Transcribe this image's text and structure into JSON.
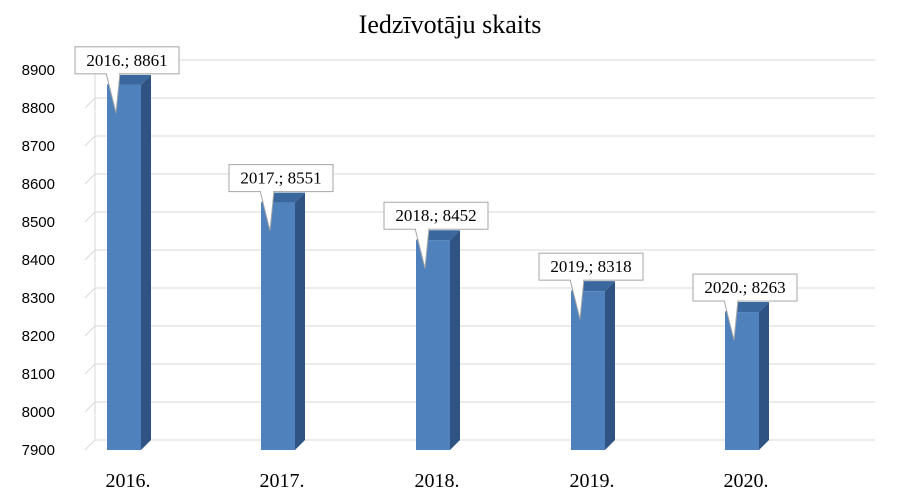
{
  "chart_data": {
    "type": "bar",
    "title": "Iedzīvotāju skaits",
    "categories": [
      "2016.",
      "2017.",
      "2018.",
      "2019.",
      "2020."
    ],
    "values": [
      8861,
      8551,
      8452,
      8318,
      8263
    ],
    "data_labels": [
      "2016.; 8861",
      "2017.; 8551",
      "2018.; 8452",
      "2019.; 8318",
      "2020.; 8263"
    ],
    "ylim": [
      7900,
      8900
    ],
    "yticks": [
      "7900",
      "8000",
      "8100",
      "8200",
      "8300",
      "8400",
      "8500",
      "8600",
      "8700",
      "8800",
      "8900"
    ],
    "xlabel": "",
    "ylabel": "",
    "grid": true,
    "colors": {
      "bar_front": "#4f81bd",
      "bar_side": "#2f5382",
      "bar_top": "#3a679e",
      "grid": "#d9d9d9",
      "label_border": "#a6a6a6"
    }
  }
}
